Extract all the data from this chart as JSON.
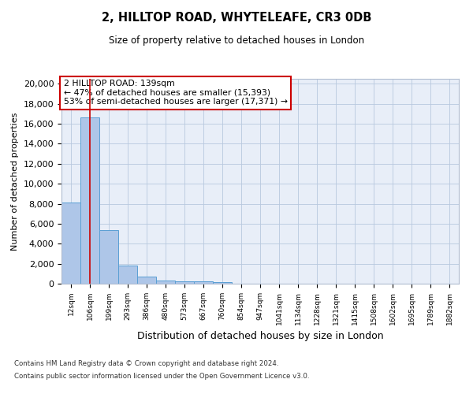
{
  "title_line1": "2, HILLTOP ROAD, WHYTELEAFE, CR3 0DB",
  "title_line2": "Size of property relative to detached houses in London",
  "xlabel": "Distribution of detached houses by size in London",
  "ylabel": "Number of detached properties",
  "categories": [
    "12sqm",
    "106sqm",
    "199sqm",
    "293sqm",
    "386sqm",
    "480sqm",
    "573sqm",
    "667sqm",
    "760sqm",
    "854sqm",
    "947sqm",
    "1041sqm",
    "1134sqm",
    "1228sqm",
    "1321sqm",
    "1415sqm",
    "1508sqm",
    "1602sqm",
    "1695sqm",
    "1789sqm",
    "1882sqm"
  ],
  "values": [
    8100,
    16600,
    5350,
    1850,
    700,
    330,
    210,
    200,
    130,
    0,
    0,
    0,
    0,
    0,
    0,
    0,
    0,
    0,
    0,
    0,
    0
  ],
  "bar_color": "#aec6e8",
  "bar_edge_color": "#5a9fd4",
  "vline_x": 1,
  "vline_color": "#cc0000",
  "annotation_title": "2 HILLTOP ROAD: 139sqm",
  "annotation_line2": "← 47% of detached houses are smaller (15,393)",
  "annotation_line3": "53% of semi-detached houses are larger (17,371) →",
  "annotation_box_color": "#ffffff",
  "annotation_box_edge": "#cc0000",
  "ylim": [
    0,
    20500
  ],
  "yticks": [
    0,
    2000,
    4000,
    6000,
    8000,
    10000,
    12000,
    14000,
    16000,
    18000,
    20000
  ],
  "bg_color": "#e8eef8",
  "footer_line1": "Contains HM Land Registry data © Crown copyright and database right 2024.",
  "footer_line2": "Contains public sector information licensed under the Open Government Licence v3.0."
}
